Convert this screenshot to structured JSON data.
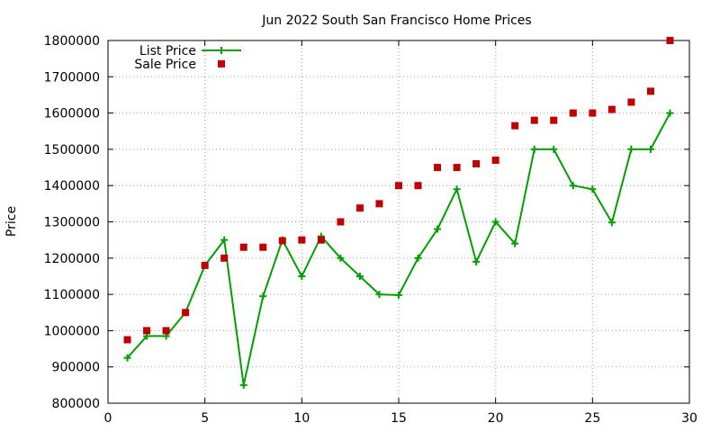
{
  "chart_data": {
    "type": "line",
    "title": "Jun 2022 South San Francisco Home Prices",
    "xlabel": "",
    "ylabel": "Price",
    "xlim": [
      0,
      30
    ],
    "ylim": [
      800000,
      1800000
    ],
    "x_ticks": [
      0,
      5,
      10,
      15,
      20,
      25,
      30
    ],
    "y_ticks": [
      800000,
      900000,
      1000000,
      1100000,
      1200000,
      1300000,
      1400000,
      1500000,
      1600000,
      1700000,
      1800000
    ],
    "grid": true,
    "legend_position": "top-left",
    "series": [
      {
        "name": "List Price",
        "style": "line-plus",
        "color": "#00a000",
        "x": [
          1,
          2,
          3,
          4,
          5,
          6,
          7,
          8,
          9,
          10,
          11,
          12,
          13,
          14,
          15,
          16,
          17,
          18,
          19,
          20,
          21,
          22,
          23,
          24,
          25,
          26,
          27,
          28,
          29
        ],
        "y": [
          925000,
          985000,
          985000,
          1050000,
          1180000,
          1250000,
          850000,
          1095000,
          1250000,
          1150000,
          1260000,
          1200000,
          1150000,
          1100000,
          1098000,
          1200000,
          1280000,
          1390000,
          1190000,
          1300000,
          1240000,
          1500000,
          1500000,
          1400000,
          1390000,
          1298000,
          1500000,
          1500000,
          1600000
        ]
      },
      {
        "name": "Sale Price",
        "style": "square-points",
        "color": "#c00000",
        "x": [
          1,
          2,
          3,
          4,
          5,
          6,
          7,
          8,
          9,
          10,
          11,
          12,
          13,
          14,
          15,
          16,
          17,
          18,
          19,
          20,
          21,
          22,
          23,
          24,
          25,
          26,
          27,
          28,
          29
        ],
        "y": [
          975000,
          1000000,
          1000000,
          1050000,
          1180000,
          1200000,
          1230000,
          1230000,
          1248000,
          1250000,
          1250000,
          1300000,
          1338000,
          1350000,
          1400000,
          1400000,
          1450000,
          1450000,
          1460000,
          1470000,
          1565000,
          1580000,
          1580000,
          1600000,
          1600000,
          1610000,
          1630000,
          1660000,
          1800000
        ]
      }
    ]
  }
}
